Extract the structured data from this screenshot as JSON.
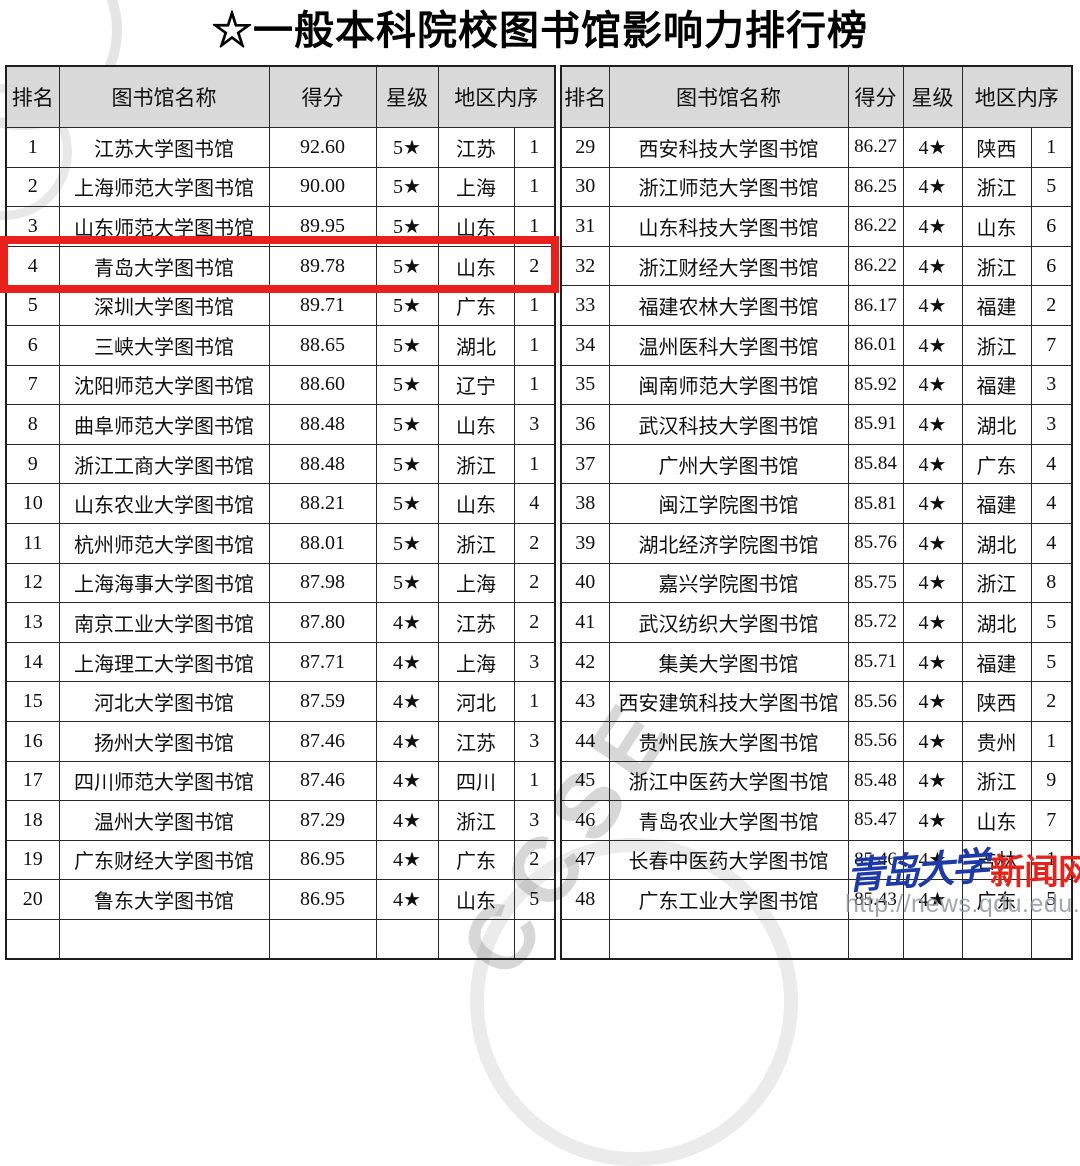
{
  "title": "☆一般本科院校图书馆影响力排行榜",
  "table": {
    "headers": [
      "排名",
      "图书馆名称",
      "得分",
      "星级",
      "地区内序"
    ],
    "highlight_rank": "4",
    "left_rows": [
      [
        "1",
        "江苏大学图书馆",
        "92.60",
        "5★",
        "江苏",
        "1"
      ],
      [
        "2",
        "上海师范大学图书馆",
        "90.00",
        "5★",
        "上海",
        "1"
      ],
      [
        "3",
        "山东师范大学图书馆",
        "89.95",
        "5★",
        "山东",
        "1"
      ],
      [
        "4",
        "青岛大学图书馆",
        "89.78",
        "5★",
        "山东",
        "2"
      ],
      [
        "5",
        "深圳大学图书馆",
        "89.71",
        "5★",
        "广东",
        "1"
      ],
      [
        "6",
        "三峡大学图书馆",
        "88.65",
        "5★",
        "湖北",
        "1"
      ],
      [
        "7",
        "沈阳师范大学图书馆",
        "88.60",
        "5★",
        "辽宁",
        "1"
      ],
      [
        "8",
        "曲阜师范大学图书馆",
        "88.48",
        "5★",
        "山东",
        "3"
      ],
      [
        "9",
        "浙江工商大学图书馆",
        "88.48",
        "5★",
        "浙江",
        "1"
      ],
      [
        "10",
        "山东农业大学图书馆",
        "88.21",
        "5★",
        "山东",
        "4"
      ],
      [
        "11",
        "杭州师范大学图书馆",
        "88.01",
        "5★",
        "浙江",
        "2"
      ],
      [
        "12",
        "上海海事大学图书馆",
        "87.98",
        "5★",
        "上海",
        "2"
      ],
      [
        "13",
        "南京工业大学图书馆",
        "87.80",
        "4★",
        "江苏",
        "2"
      ],
      [
        "14",
        "上海理工大学图书馆",
        "87.71",
        "4★",
        "上海",
        "3"
      ],
      [
        "15",
        "河北大学图书馆",
        "87.59",
        "4★",
        "河北",
        "1"
      ],
      [
        "16",
        "扬州大学图书馆",
        "87.46",
        "4★",
        "江苏",
        "3"
      ],
      [
        "17",
        "四川师范大学图书馆",
        "87.46",
        "4★",
        "四川",
        "1"
      ],
      [
        "18",
        "温州大学图书馆",
        "87.29",
        "4★",
        "浙江",
        "3"
      ],
      [
        "19",
        "广东财经大学图书馆",
        "86.95",
        "4★",
        "广东",
        "2"
      ],
      [
        "20",
        "鲁东大学图书馆",
        "86.95",
        "4★",
        "山东",
        "5"
      ]
    ],
    "right_rows": [
      [
        "29",
        "西安科技大学图书馆",
        "86.27",
        "4★",
        "陕西",
        "1"
      ],
      [
        "30",
        "浙江师范大学图书馆",
        "86.25",
        "4★",
        "浙江",
        "5"
      ],
      [
        "31",
        "山东科技大学图书馆",
        "86.22",
        "4★",
        "山东",
        "6"
      ],
      [
        "32",
        "浙江财经大学图书馆",
        "86.22",
        "4★",
        "浙江",
        "6"
      ],
      [
        "33",
        "福建农林大学图书馆",
        "86.17",
        "4★",
        "福建",
        "2"
      ],
      [
        "34",
        "温州医科大学图书馆",
        "86.01",
        "4★",
        "浙江",
        "7"
      ],
      [
        "35",
        "闽南师范大学图书馆",
        "85.92",
        "4★",
        "福建",
        "3"
      ],
      [
        "36",
        "武汉科技大学图书馆",
        "85.91",
        "4★",
        "湖北",
        "3"
      ],
      [
        "37",
        "广州大学图书馆",
        "85.84",
        "4★",
        "广东",
        "4"
      ],
      [
        "38",
        "闽江学院图书馆",
        "85.81",
        "4★",
        "福建",
        "4"
      ],
      [
        "39",
        "湖北经济学院图书馆",
        "85.76",
        "4★",
        "湖北",
        "4"
      ],
      [
        "40",
        "嘉兴学院图书馆",
        "85.75",
        "4★",
        "浙江",
        "8"
      ],
      [
        "41",
        "武汉纺织大学图书馆",
        "85.72",
        "4★",
        "湖北",
        "5"
      ],
      [
        "42",
        "集美大学图书馆",
        "85.71",
        "4★",
        "福建",
        "5"
      ],
      [
        "43",
        "西安建筑科技大学图书馆",
        "85.56",
        "4★",
        "陕西",
        "2"
      ],
      [
        "44",
        "贵州民族大学图书馆",
        "85.56",
        "4★",
        "贵州",
        "1"
      ],
      [
        "45",
        "浙江中医药大学图书馆",
        "85.48",
        "4★",
        "浙江",
        "9"
      ],
      [
        "46",
        "青岛农业大学图书馆",
        "85.47",
        "4★",
        "山东",
        "7"
      ],
      [
        "47",
        "长春中医药大学图书馆",
        "85.46",
        "4★",
        "吉林",
        "1"
      ],
      [
        "48",
        "广东工业大学图书馆",
        "85.43",
        "4★",
        "广东",
        "5"
      ]
    ]
  },
  "watermark": {
    "site_name_blue": "青岛大学",
    "site_name_red": "新闻网",
    "url": "http://news.qdu.edu.cn",
    "background_text": "CCSE"
  },
  "colors": {
    "highlight_box_red": "#e8211d",
    "header_bg": "#d9d9d9",
    "watermark_blue": "#1e3aa8",
    "watermark_red": "#e2241c",
    "border": "#2a2a2a"
  }
}
